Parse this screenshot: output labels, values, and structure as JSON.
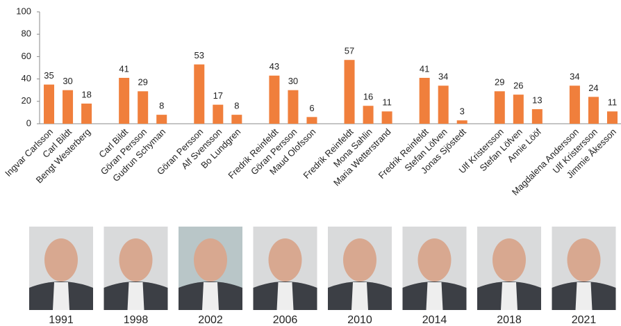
{
  "chart_data": {
    "type": "bar",
    "color": "#f07f3c",
    "ylim": [
      0,
      100
    ],
    "yticks": [
      0,
      20,
      40,
      60,
      80,
      100
    ],
    "groups": [
      {
        "label": "1991",
        "categories": [
          "Ingvar Carlsson",
          "Carl Bildt",
          "Bengt Westerberg"
        ],
        "values": [
          35,
          30,
          18
        ]
      },
      {
        "label": "1998",
        "categories": [
          "Carl Bildt",
          "Göran Persson",
          "Gudrun Schyman"
        ],
        "values": [
          41,
          29,
          8
        ]
      },
      {
        "label": "2002",
        "categories": [
          "Göran Persson",
          "Alf Svensson",
          "Bo Lundgren"
        ],
        "values": [
          53,
          17,
          8
        ]
      },
      {
        "label": "2006",
        "categories": [
          "Fredrik Reinfeldt",
          "Göran Persson",
          "Maud Olofsson"
        ],
        "values": [
          43,
          30,
          6
        ]
      },
      {
        "label": "2010",
        "categories": [
          "Fredrik Reinfeldt",
          "Mona Sahlin",
          "Maria Wetterstrand"
        ],
        "values": [
          57,
          16,
          11
        ]
      },
      {
        "label": "2014",
        "categories": [
          "Fredrik Reinfeldt",
          "Stefan Löfven",
          "Jonas Sjöstedt"
        ],
        "values": [
          41,
          34,
          3
        ]
      },
      {
        "label": "2018",
        "categories": [
          "Ulf Kristersson",
          "Stefan Löfven",
          "Annie Lööf"
        ],
        "values": [
          29,
          26,
          13
        ]
      },
      {
        "label": "2021",
        "categories": [
          "Magdalena Andersson",
          "Ulf Kristersson",
          "Jimmie Åkesson"
        ],
        "values": [
          34,
          24,
          11
        ]
      }
    ]
  }
}
